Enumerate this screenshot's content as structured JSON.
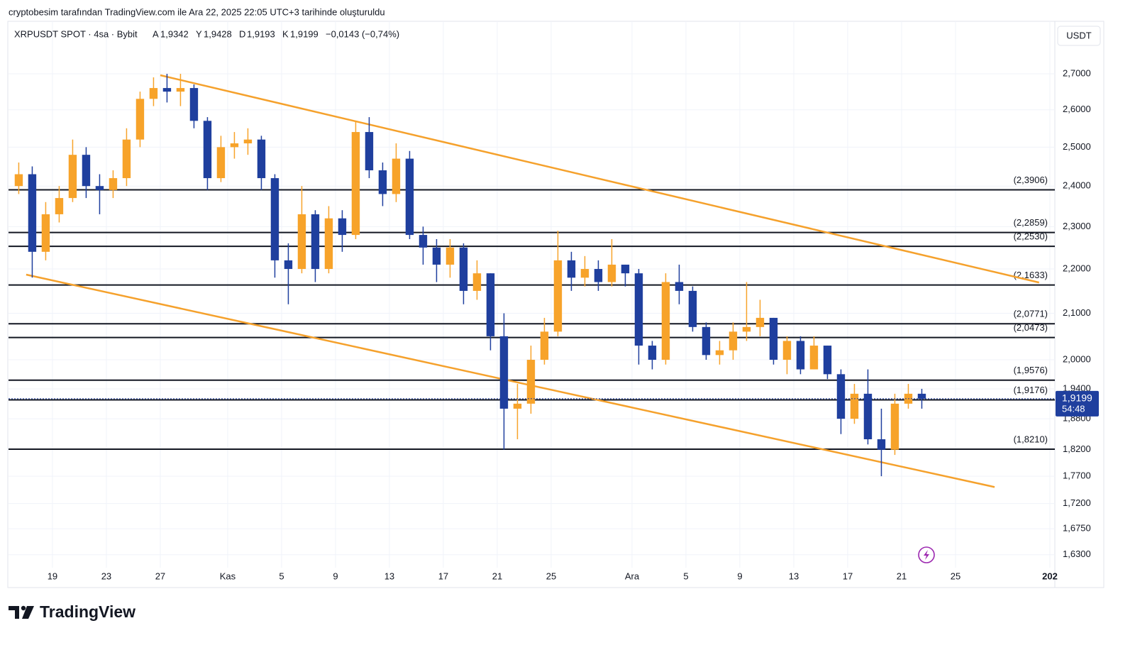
{
  "chart_data": {
    "type": "candlestick",
    "header": "cryptobesim tarafından TradingView.com ile Ara 22, 2025 22:05 UTC+3 tarihinde oluşturuldu",
    "symbol": "XRPUSDT SPOT · 4sa · Bybit",
    "ohlc_legend": [
      {
        "key": "A",
        "value": "1,9342"
      },
      {
        "key": "Y",
        "value": "1,9428"
      },
      {
        "key": "D",
        "value": "1,9193"
      },
      {
        "key": "K",
        "value": "1,9199"
      }
    ],
    "change": "−0,0143 (−0,74%)",
    "currency": "USDT",
    "brand": "TradingView",
    "log_scale": true,
    "grid": true,
    "up_color": "#f7a32a",
    "down_color": "#1f3f9e",
    "trend_color": "#f5a12c",
    "level_color": "#131722",
    "xlim": [
      15.74,
      93.37
    ],
    "ylim": [
      1.608,
      2.853
    ],
    "xticks": [
      19,
      23,
      27,
      {
        "value": 32,
        "label": "Kas"
      },
      {
        "value": 36,
        "label": "5"
      },
      {
        "value": 40,
        "label": "9"
      },
      {
        "value": 44,
        "label": "13"
      },
      {
        "value": 48,
        "label": "17"
      },
      {
        "value": 52,
        "label": "21"
      },
      {
        "value": 56,
        "label": "25"
      },
      {
        "value": 62,
        "label": "Ara"
      },
      {
        "value": 66,
        "label": "5"
      },
      {
        "value": 70,
        "label": "9"
      },
      {
        "value": 74,
        "label": "13"
      },
      {
        "value": 78,
        "label": "17"
      },
      {
        "value": 82,
        "label": "21"
      },
      {
        "value": 86,
        "label": "25"
      },
      {
        "value": 93,
        "label": "202"
      }
    ],
    "yticks": [
      {
        "value": 2.7,
        "label": "2,7000"
      },
      {
        "value": 2.6,
        "label": "2,6000"
      },
      {
        "value": 2.5,
        "label": "2,5000"
      },
      {
        "value": 2.4,
        "label": "2,4000"
      },
      {
        "value": 2.3,
        "label": "2,3000"
      },
      {
        "value": 2.2,
        "label": "2,2000"
      },
      {
        "value": 2.1,
        "label": "2,1000"
      },
      {
        "value": 2.0,
        "label": "2,0000"
      },
      {
        "value": 1.94,
        "label": "1,9400"
      },
      {
        "value": 1.88,
        "label": "1,8800"
      },
      {
        "value": 1.82,
        "label": "1,8200"
      },
      {
        "value": 1.77,
        "label": "1,7700"
      },
      {
        "value": 1.72,
        "label": "1,7200"
      },
      {
        "value": 1.675,
        "label": "1,6750"
      },
      {
        "value": 1.63,
        "label": "1,6300"
      }
    ],
    "levels": [
      {
        "value": 2.3906,
        "label": "(2,3906)"
      },
      {
        "value": 2.2859,
        "label": "(2,2859)"
      },
      {
        "value": 2.253,
        "label": "(2,2530)"
      },
      {
        "value": 2.1633,
        "label": "(2,1633)"
      },
      {
        "value": 2.0771,
        "label": "(2,0771)"
      },
      {
        "value": 2.0473,
        "label": "(2,0473)"
      },
      {
        "value": 1.9576,
        "label": "(1,9576)"
      },
      {
        "value": 1.9176,
        "label": "(1,9176)"
      },
      {
        "value": 1.821,
        "label": "(1,8210)"
      }
    ],
    "trendlines": [
      {
        "x": [
          27.0,
          92.2
        ],
        "y": [
          2.696,
          2.169
        ]
      },
      {
        "x": [
          17.05,
          88.9
        ],
        "y": [
          2.187,
          1.75
        ]
      }
    ],
    "last_price": {
      "value": 1.9199,
      "label": "1,9199"
    },
    "countdown": "54:48",
    "candles": {
      "x": [
        16.5,
        17.5,
        18.5,
        19.5,
        20.5,
        21.5,
        22.5,
        23.5,
        24.5,
        25.5,
        26.5,
        27.5,
        28.5,
        29.5,
        30.5,
        31.5,
        32.5,
        33.5,
        34.5,
        35.5,
        36.5,
        37.5,
        38.5,
        39.5,
        40.5,
        41.5,
        42.5,
        43.5,
        44.5,
        45.5,
        46.5,
        47.5,
        48.5,
        49.5,
        50.5,
        51.5,
        52.5,
        53.5,
        54.5,
        55.5,
        56.5,
        57.5,
        58.5,
        59.5,
        60.5,
        61.5,
        62.5,
        63.5,
        64.5,
        65.5,
        66.5,
        67.5,
        68.5,
        69.5,
        70.5,
        71.5,
        72.5,
        73.5,
        74.5,
        75.5,
        76.5,
        77.5,
        78.5,
        79.5,
        80.5,
        81.5,
        82.5,
        83.5
      ],
      "open": [
        2.4,
        2.43,
        2.24,
        2.33,
        2.37,
        2.48,
        2.4,
        2.39,
        2.42,
        2.52,
        2.63,
        2.66,
        2.65,
        2.66,
        2.57,
        2.42,
        2.5,
        2.51,
        2.52,
        2.42,
        2.22,
        2.2,
        2.33,
        2.2,
        2.32,
        2.28,
        2.54,
        2.44,
        2.38,
        2.47,
        2.28,
        2.25,
        2.21,
        2.25,
        2.15,
        2.19,
        2.05,
        1.9,
        1.91,
        2.0,
        2.06,
        2.22,
        2.18,
        2.2,
        2.17,
        2.21,
        2.19,
        2.03,
        2.0,
        2.17,
        2.15,
        2.07,
        2.01,
        2.02,
        2.06,
        2.07,
        2.09,
        2.0,
        2.04,
        1.98,
        2.03,
        1.97,
        1.88,
        1.93,
        1.84,
        1.82,
        1.91,
        1.93
      ],
      "high": [
        2.46,
        2.45,
        2.36,
        2.4,
        2.52,
        2.5,
        2.43,
        2.44,
        2.55,
        2.65,
        2.69,
        2.7,
        2.7,
        2.67,
        2.58,
        2.53,
        2.54,
        2.55,
        2.53,
        2.43,
        2.26,
        2.4,
        2.34,
        2.35,
        2.34,
        2.57,
        2.58,
        2.46,
        2.51,
        2.49,
        2.3,
        2.27,
        2.27,
        2.26,
        2.22,
        2.19,
        2.1,
        1.95,
        2.03,
        2.09,
        2.29,
        2.24,
        2.23,
        2.22,
        2.27,
        2.21,
        2.2,
        2.04,
        2.19,
        2.21,
        2.16,
        2.08,
        2.04,
        2.08,
        2.17,
        2.13,
        2.09,
        2.05,
        2.05,
        2.05,
        2.03,
        1.98,
        1.95,
        1.98,
        1.9,
        1.93,
        1.95,
        1.94
      ],
      "low": [
        2.38,
        2.18,
        2.22,
        2.31,
        2.36,
        2.37,
        2.33,
        2.37,
        2.4,
        2.5,
        2.61,
        2.62,
        2.61,
        2.55,
        2.39,
        2.41,
        2.47,
        2.48,
        2.39,
        2.18,
        2.12,
        2.19,
        2.17,
        2.19,
        2.24,
        2.27,
        2.42,
        2.35,
        2.36,
        2.27,
        2.21,
        2.17,
        2.18,
        2.12,
        2.13,
        2.02,
        1.82,
        1.84,
        1.89,
        1.99,
        2.05,
        2.15,
        2.16,
        2.15,
        2.16,
        2.16,
        1.99,
        1.98,
        1.99,
        2.12,
        2.06,
        2.0,
        1.99,
        2.0,
        2.04,
        2.05,
        1.99,
        1.97,
        1.97,
        1.98,
        1.96,
        1.85,
        1.87,
        1.83,
        1.77,
        1.81,
        1.9,
        1.9
      ],
      "close": [
        2.43,
        2.24,
        2.33,
        2.37,
        2.48,
        2.4,
        2.39,
        2.42,
        2.52,
        2.63,
        2.66,
        2.65,
        2.66,
        2.57,
        2.42,
        2.5,
        2.51,
        2.52,
        2.42,
        2.22,
        2.2,
        2.33,
        2.2,
        2.32,
        2.28,
        2.54,
        2.44,
        2.38,
        2.47,
        2.28,
        2.25,
        2.21,
        2.25,
        2.15,
        2.19,
        2.05,
        1.9,
        1.91,
        2.0,
        2.06,
        2.22,
        2.18,
        2.2,
        2.17,
        2.21,
        2.19,
        2.03,
        2.0,
        2.17,
        2.15,
        2.07,
        2.01,
        2.02,
        2.06,
        2.07,
        2.09,
        2.0,
        2.04,
        1.98,
        2.03,
        1.97,
        1.88,
        1.93,
        1.84,
        1.82,
        1.91,
        1.93,
        1.92
      ]
    }
  }
}
